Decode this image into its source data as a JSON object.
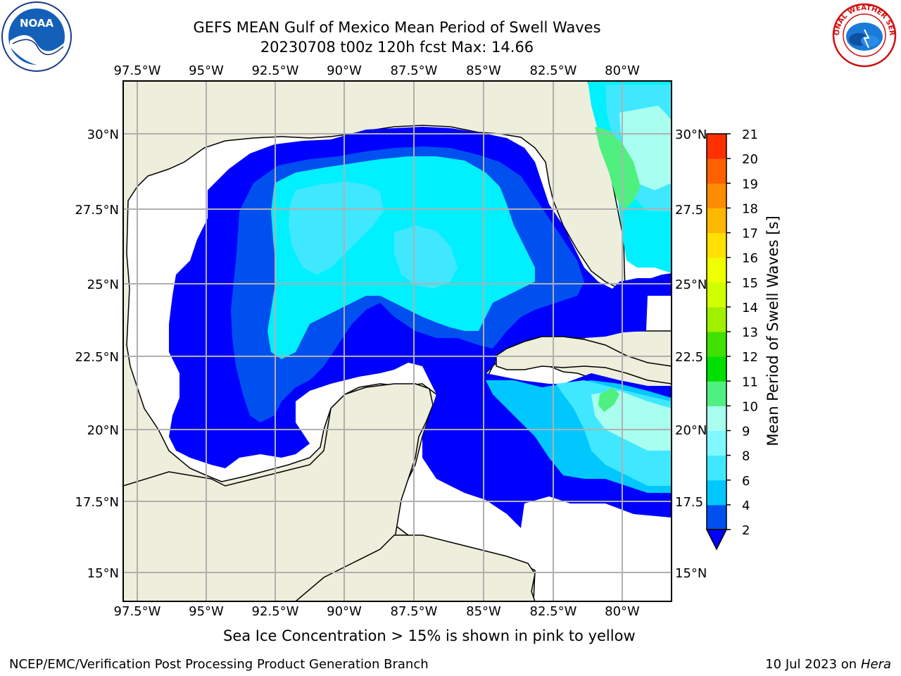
{
  "header": {
    "title_line1": "GEFS MEAN Gulf of Mexico Mean Period of Swell Waves",
    "title_line2": "20230708 t00z 120h fcst   Max: 14.66"
  },
  "axes": {
    "lon_ticks": [
      "97.5°W",
      "95°W",
      "92.5°W",
      "90°W",
      "87.5°W",
      "85°W",
      "82.5°W",
      "80°W"
    ],
    "lat_ticks_left": [
      "30°N",
      "27.5°N",
      "25°N",
      "22.5°N",
      "20°N",
      "17.5°N",
      "15°N"
    ],
    "lat_ticks_right": [
      "30°N",
      "27.5",
      "25°N",
      "22.5",
      "20°N",
      "17.5",
      "15°N"
    ]
  },
  "colorbar": {
    "label": "Mean Period of Swell Waves [s]",
    "ticks": [
      "2",
      "4",
      "6",
      "8",
      "9",
      "10",
      "11",
      "12",
      "13",
      "14",
      "15",
      "16",
      "17",
      "18",
      "19",
      "20",
      "21"
    ],
    "colors": [
      "#0050f0",
      "#00c8ff",
      "#40e8ff",
      "#80f8ff",
      "#a8fff0",
      "#50f080",
      "#00e000",
      "#40e000",
      "#a0f000",
      "#d0ff00",
      "#f0ff00",
      "#ffe000",
      "#ffb800",
      "#ff8c00",
      "#ff6000",
      "#ff3000",
      "#ff0000"
    ],
    "under_color": "#0000ff"
  },
  "map": {
    "land_color": "#eeeedc",
    "nodata_color": "#ffffff",
    "grid_color": "#b0b0b0"
  },
  "caption": "Sea Ice Concentration > 15% is shown in pink to yellow",
  "footer": {
    "left": "NCEP/EMC/Verification Post Processing Product Generation Branch",
    "right_date": "10 Jul 2023 on ",
    "right_host": "Hera"
  },
  "logos": {
    "noaa_text": "NOAA",
    "nws_text": "NATIONAL WEATHER SERVICE"
  }
}
